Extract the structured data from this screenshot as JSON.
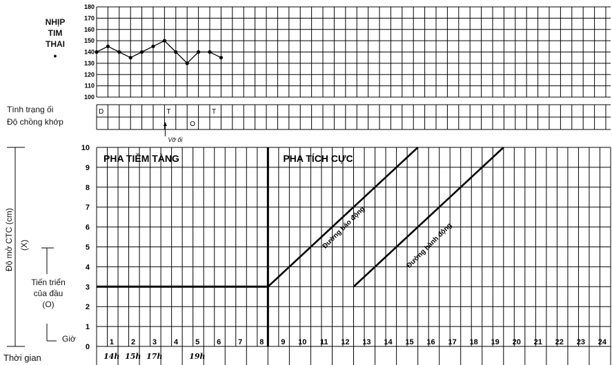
{
  "fhr": {
    "title_lines": [
      "NHỊP",
      "TIM",
      "THAI"
    ],
    "bullet": "•",
    "y_ticks": [
      "180",
      "170",
      "160",
      "150",
      "140",
      "130",
      "120",
      "110",
      "100"
    ],
    "values": [
      140,
      145,
      140,
      135,
      140,
      145,
      150,
      140,
      130,
      140,
      140,
      135
    ]
  },
  "membranes": {
    "row1_label": "Tình trạng ối",
    "row2_label": "Độ chồng khớp",
    "row1_cells": [
      {
        "col": 0,
        "text": "D"
      },
      {
        "col": 6,
        "text": "T"
      },
      {
        "col": 10,
        "text": "T"
      }
    ],
    "row2_cells": [
      {
        "col": 8,
        "text": "O"
      }
    ],
    "rupture_note": "Vỡ ối"
  },
  "labor": {
    "y_axis_label": "Độ mở CTC (cm)",
    "y_axis_sub": "(X)",
    "progress_label": [
      "Tiến triển",
      "của đầu",
      "(O)"
    ],
    "hours_label": "Giờ",
    "time_label": "Thời gian",
    "y_ticks": [
      "10",
      "9",
      "8",
      "7",
      "6",
      "5",
      "4",
      "3",
      "2",
      "1",
      "0"
    ],
    "hours": [
      "1",
      "2",
      "3",
      "4",
      "5",
      "6",
      "7",
      "8",
      "9",
      "10",
      "11",
      "12",
      "13",
      "14",
      "15",
      "16",
      "17",
      "18",
      "19",
      "20",
      "21",
      "22",
      "23",
      "24"
    ],
    "clock_times": [
      {
        "col": 1,
        "text": "14h"
      },
      {
        "col": 2,
        "text": "15h"
      },
      {
        "col": 3,
        "text": "17h"
      },
      {
        "col": 5,
        "text": "19h"
      }
    ],
    "latent_phase": "PHA TIỀM TÀNG",
    "active_phase": "PHA TÍCH CỰC",
    "alert_line": "Đường báo động",
    "action_line": "Đường hành động"
  },
  "chart_data": {
    "type": "line",
    "series": [
      {
        "name": "Đường báo động",
        "x": [
          8,
          15
        ],
        "y": [
          3,
          10
        ]
      },
      {
        "name": "Đường hành động",
        "x": [
          12,
          19
        ],
        "y": [
          3,
          10
        ]
      }
    ],
    "xlim": [
      0,
      24
    ],
    "ylim": [
      0,
      10
    ],
    "fhr_ylim": [
      100,
      180
    ]
  }
}
